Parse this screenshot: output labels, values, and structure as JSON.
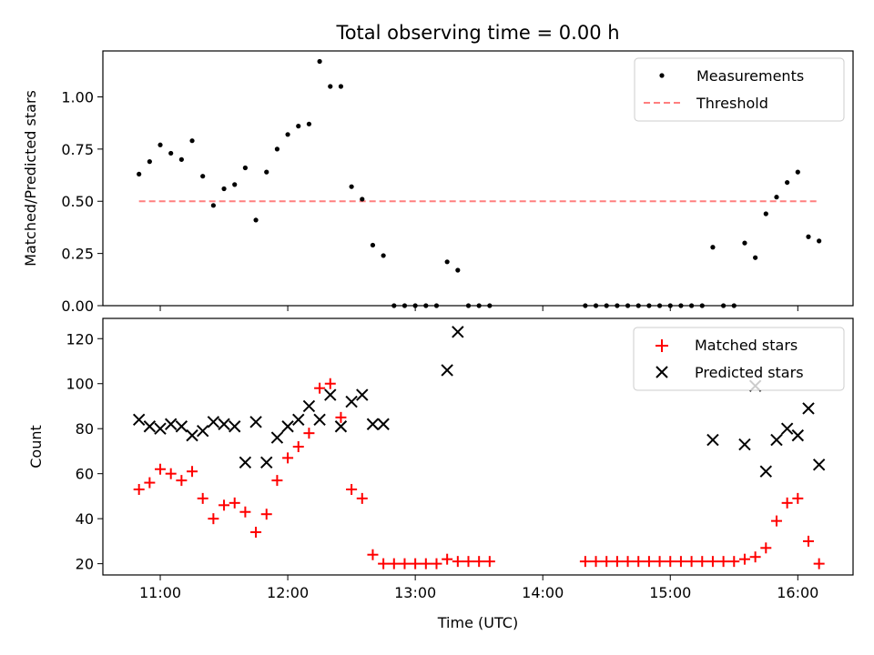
{
  "chart_data": [
    {
      "type": "scatter",
      "title": "Total observing time = 0.00 h",
      "xlabel": "",
      "ylabel": "Matched/Predicted stars",
      "xlim": [
        "10:33",
        "16:26"
      ],
      "ylim": [
        0.0,
        1.22
      ],
      "yticks": [
        "0.00",
        "0.25",
        "0.50",
        "0.75",
        "1.00"
      ],
      "ytick_values": [
        0.0,
        0.25,
        0.5,
        0.75,
        1.0
      ],
      "legend_position": "top-right",
      "series": [
        {
          "name": "Measurements",
          "marker": "dot",
          "color": "#000000",
          "x": [
            "10:50",
            "10:55",
            "11:00",
            "11:05",
            "11:10",
            "11:15",
            "11:20",
            "11:25",
            "11:30",
            "11:35",
            "11:40",
            "11:45",
            "11:50",
            "11:55",
            "12:00",
            "12:05",
            "12:10",
            "12:15",
            "12:20",
            "12:25",
            "12:30",
            "12:35",
            "12:40",
            "12:45",
            "12:50",
            "12:55",
            "13:00",
            "13:05",
            "13:10",
            "13:15",
            "13:20",
            "13:25",
            "13:30",
            "13:35",
            "14:20",
            "14:25",
            "14:30",
            "14:35",
            "14:40",
            "14:45",
            "14:50",
            "14:55",
            "15:00",
            "15:05",
            "15:10",
            "15:15",
            "15:20",
            "15:25",
            "15:30",
            "15:35",
            "15:40",
            "15:45",
            "15:50",
            "15:55",
            "16:00",
            "16:05",
            "16:10"
          ],
          "y": [
            0.63,
            0.69,
            0.77,
            0.73,
            0.7,
            0.79,
            0.62,
            0.48,
            0.56,
            0.58,
            0.66,
            0.41,
            0.64,
            0.75,
            0.82,
            0.86,
            0.87,
            1.17,
            1.05,
            1.05,
            0.57,
            0.51,
            0.29,
            0.24,
            0.0,
            0.0,
            0.0,
            0.0,
            0.0,
            0.21,
            0.17,
            0.0,
            0.0,
            0.0,
            0.0,
            0.0,
            0.0,
            0.0,
            0.0,
            0.0,
            0.0,
            0.0,
            0.0,
            0.0,
            0.0,
            0.0,
            0.28,
            0.0,
            0.0,
            0.3,
            0.23,
            0.44,
            0.52,
            0.59,
            0.64,
            0.33,
            0.31
          ]
        },
        {
          "name": "Threshold",
          "marker": "dashed-line",
          "color": "#ff7f7f",
          "x": [
            "10:50",
            "16:10"
          ],
          "y": [
            0.5,
            0.5
          ]
        }
      ]
    },
    {
      "type": "scatter",
      "title": "",
      "xlabel": "Time (UTC)",
      "ylabel": "Count",
      "xlim": [
        "10:33",
        "16:26"
      ],
      "ylim": [
        15,
        129
      ],
      "xticks": [
        "11:00",
        "12:00",
        "13:00",
        "14:00",
        "15:00",
        "16:00"
      ],
      "yticks": [
        "20",
        "40",
        "60",
        "80",
        "100",
        "120"
      ],
      "ytick_values": [
        20,
        40,
        60,
        80,
        100,
        120
      ],
      "legend_position": "top-right",
      "series": [
        {
          "name": "Matched stars",
          "marker": "plus",
          "color": "#ff0000",
          "x": [
            "10:50",
            "10:55",
            "11:00",
            "11:05",
            "11:10",
            "11:15",
            "11:20",
            "11:25",
            "11:30",
            "11:35",
            "11:40",
            "11:45",
            "11:50",
            "11:55",
            "12:00",
            "12:05",
            "12:10",
            "12:15",
            "12:20",
            "12:25",
            "12:30",
            "12:35",
            "12:40",
            "12:45",
            "12:50",
            "12:55",
            "13:00",
            "13:05",
            "13:10",
            "13:15",
            "13:20",
            "13:25",
            "13:30",
            "13:35",
            "14:20",
            "14:25",
            "14:30",
            "14:35",
            "14:40",
            "14:45",
            "14:50",
            "14:55",
            "15:00",
            "15:05",
            "15:10",
            "15:15",
            "15:20",
            "15:25",
            "15:30",
            "15:35",
            "15:40",
            "15:45",
            "15:50",
            "15:55",
            "16:00",
            "16:05",
            "16:10"
          ],
          "y": [
            53,
            56,
            62,
            60,
            57,
            61,
            49,
            40,
            46,
            47,
            43,
            34,
            42,
            57,
            67,
            72,
            78,
            98,
            100,
            85,
            53,
            49,
            24,
            20,
            20,
            20,
            20,
            20,
            20,
            22,
            21,
            21,
            21,
            21,
            21,
            21,
            21,
            21,
            21,
            21,
            21,
            21,
            21,
            21,
            21,
            21,
            21,
            21,
            21,
            22,
            23,
            27,
            39,
            47,
            49,
            30,
            20
          ]
        },
        {
          "name": "Predicted stars",
          "marker": "x",
          "color": "#000000",
          "x": [
            "10:50",
            "10:55",
            "11:00",
            "11:05",
            "11:10",
            "11:15",
            "11:20",
            "11:25",
            "11:30",
            "11:35",
            "11:40",
            "11:45",
            "11:50",
            "11:55",
            "12:00",
            "12:05",
            "12:10",
            "12:15",
            "12:20",
            "12:25",
            "12:30",
            "12:35",
            "12:40",
            "12:45",
            "13:15",
            "13:20",
            "15:20",
            "15:35",
            "15:40",
            "15:45",
            "15:50",
            "15:55",
            "16:00",
            "16:05",
            "16:10"
          ],
          "y": [
            84,
            81,
            80,
            82,
            81,
            77,
            79,
            83,
            82,
            81,
            65,
            83,
            65,
            76,
            81,
            84,
            90,
            84,
            95,
            81,
            92,
            95,
            82,
            82,
            106,
            123,
            75,
            73,
            99,
            61,
            75,
            80,
            77,
            89,
            64
          ]
        }
      ]
    }
  ]
}
